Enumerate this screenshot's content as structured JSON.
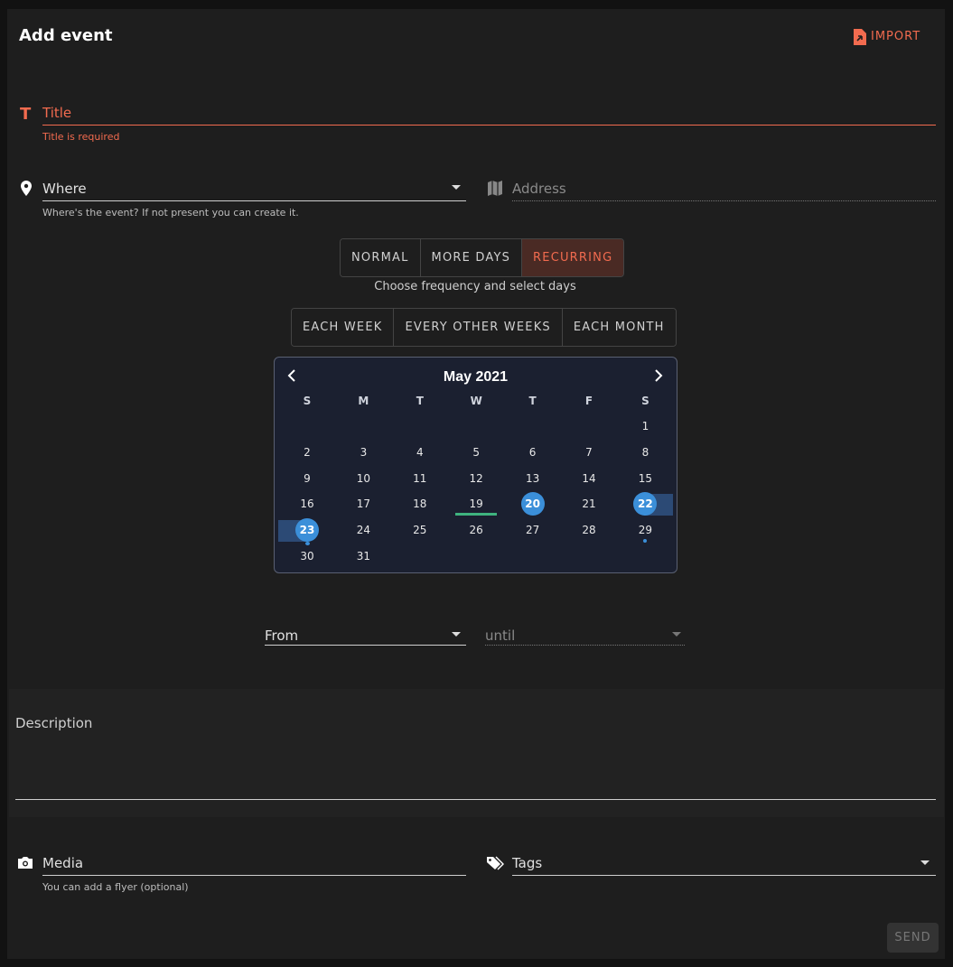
{
  "header": {
    "title": "Add event",
    "import": "IMPORT"
  },
  "title_field": {
    "label": "Title",
    "error": "Title is required"
  },
  "where": {
    "label": "Where",
    "hint": "Where's the event? If not present you can create it."
  },
  "address": {
    "label": "Address"
  },
  "event_types": {
    "options": [
      "NORMAL",
      "MORE DAYS",
      "RECURRING"
    ],
    "selected": 2
  },
  "frequency_hint": "Choose frequency and select days",
  "frequencies": [
    "EACH WEEK",
    "EVERY OTHER WEEKS",
    "EACH MONTH"
  ],
  "calendar": {
    "month": "May 2021",
    "weekdays": [
      "S",
      "M",
      "T",
      "W",
      "T",
      "F",
      "S"
    ],
    "first_weekday": 6,
    "days": [
      1,
      2,
      3,
      4,
      5,
      6,
      7,
      8,
      9,
      10,
      11,
      12,
      13,
      14,
      15,
      16,
      17,
      18,
      19,
      20,
      21,
      22,
      23,
      24,
      25,
      26,
      27,
      28,
      29,
      30,
      31
    ],
    "today": 19,
    "selected": [
      20,
      22,
      23
    ]
  },
  "time": {
    "from": "From",
    "until": "until"
  },
  "description": {
    "label": "Description"
  },
  "media": {
    "label": "Media",
    "hint": "You can add a flyer (optional)"
  },
  "tags": {
    "label": "Tags"
  },
  "send": "SEND"
}
